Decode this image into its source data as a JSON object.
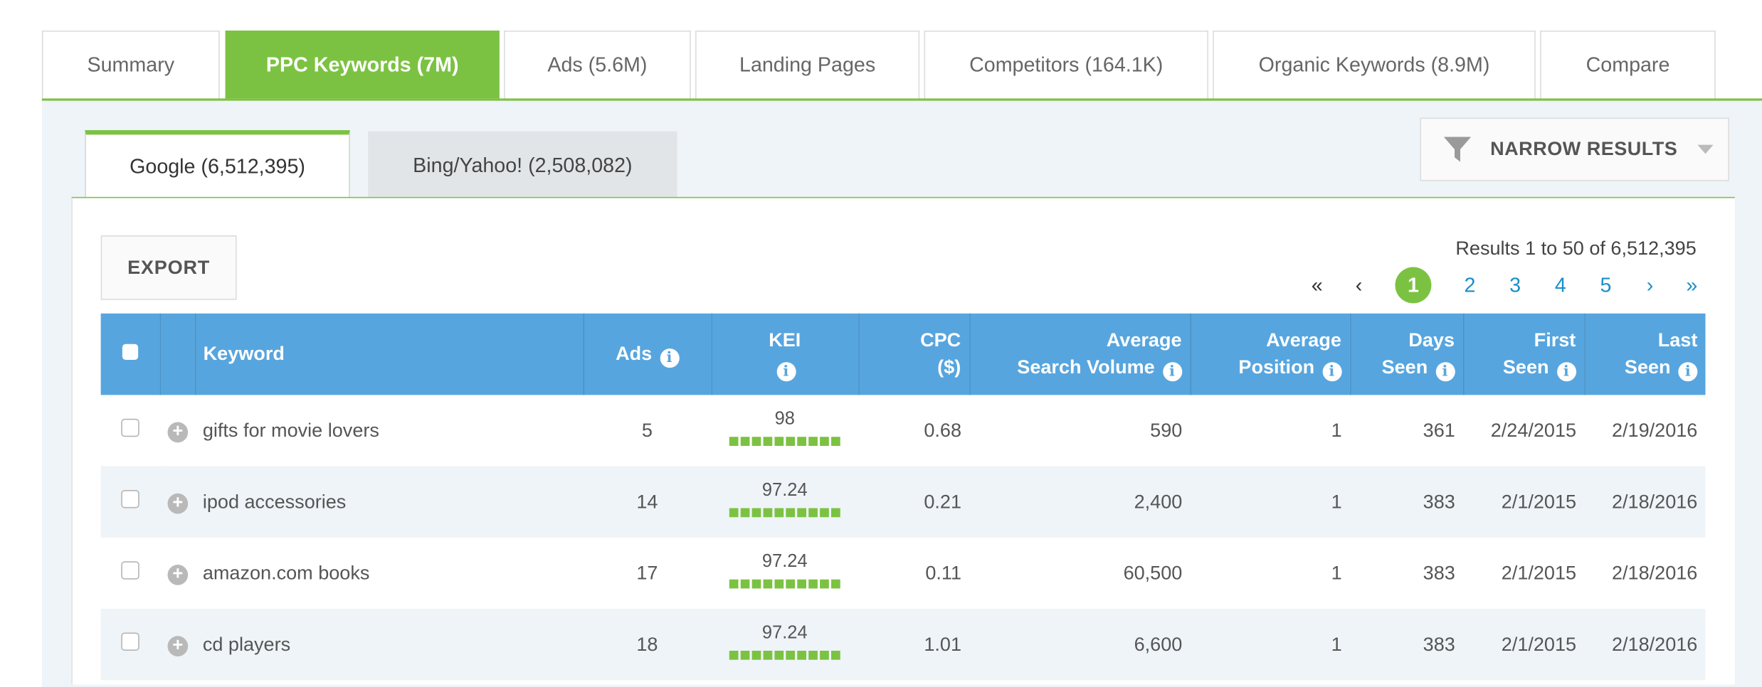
{
  "main_tabs": [
    {
      "label": "Summary",
      "active": false
    },
    {
      "label": "PPC Keywords (7M)",
      "active": true
    },
    {
      "label": "Ads (5.6M)",
      "active": false
    },
    {
      "label": "Landing Pages",
      "active": false
    },
    {
      "label": "Competitors (164.1K)",
      "active": false
    },
    {
      "label": "Organic Keywords (8.9M)",
      "active": false
    },
    {
      "label": "Compare",
      "active": false
    }
  ],
  "engine_tabs": [
    {
      "label": "Google (6,512,395)",
      "active": true
    },
    {
      "label": "Bing/Yahoo! (2,508,082)",
      "active": false
    }
  ],
  "filters": {
    "narrow_label": "NARROW RESULTS",
    "icon": "funnel-icon"
  },
  "toolbar": {
    "export_label": "EXPORT"
  },
  "results": {
    "summary": "Results 1 to 50 of 6,512,395"
  },
  "pagination": {
    "first": "«",
    "prev": "‹",
    "next": "›",
    "last": "»",
    "pages": [
      "1",
      "2",
      "3",
      "4",
      "5"
    ],
    "current": "1"
  },
  "table": {
    "headers": {
      "keyword": "Keyword",
      "ads": "Ads",
      "kei": "KEI",
      "cpc_1": "CPC",
      "cpc_2": "($)",
      "volume_1": "Average",
      "volume_2": "Search Volume",
      "position_1": "Average",
      "position_2": "Position",
      "days_1": "Days",
      "days_2": "Seen",
      "first_1": "First",
      "first_2": "Seen",
      "last_1": "Last",
      "last_2": "Seen"
    },
    "rows": [
      {
        "keyword": "gifts for movie lovers",
        "ads": "5",
        "kei": "98",
        "kei_bar_fraction": 1.0,
        "cpc": "0.68",
        "volume": "590",
        "position": "1",
        "days_seen": "361",
        "first_seen": "2/24/2015",
        "last_seen": "2/19/2016"
      },
      {
        "keyword": "ipod accessories",
        "ads": "14",
        "kei": "97.24",
        "kei_bar_fraction": 1.0,
        "cpc": "0.21",
        "volume": "2,400",
        "position": "1",
        "days_seen": "383",
        "first_seen": "2/1/2015",
        "last_seen": "2/18/2016"
      },
      {
        "keyword": "amazon.com books",
        "ads": "17",
        "kei": "97.24",
        "kei_bar_fraction": 1.0,
        "cpc": "0.11",
        "volume": "60,500",
        "position": "1",
        "days_seen": "383",
        "first_seen": "2/1/2015",
        "last_seen": "2/18/2016"
      },
      {
        "keyword": "cd players",
        "ads": "18",
        "kei": "97.24",
        "kei_bar_fraction": 1.0,
        "cpc": "1.01",
        "volume": "6,600",
        "position": "1",
        "days_seen": "383",
        "first_seen": "2/1/2015",
        "last_seen": "2/18/2016"
      }
    ]
  },
  "colors": {
    "accent_green": "#7cc242",
    "header_blue": "#57a5de",
    "link_blue": "#1a8fc9",
    "row_alt": "#eef4f7"
  }
}
